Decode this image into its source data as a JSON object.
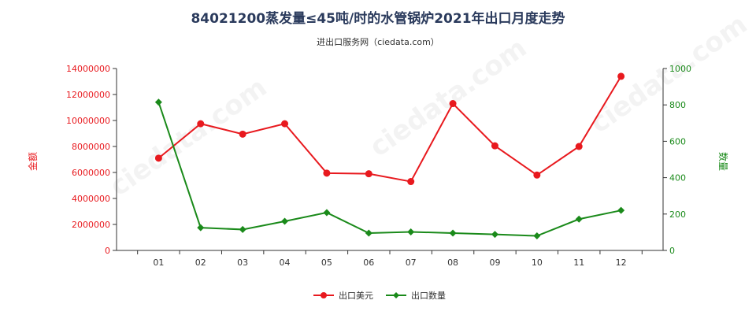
{
  "chart_data": {
    "type": "line",
    "title": "84021200蒸发量≤45吨/时的水管锅炉2021年出口月度走势",
    "subtitle": "进出口服务网（ciedata.com）",
    "categories": [
      "01",
      "02",
      "03",
      "04",
      "05",
      "06",
      "07",
      "08",
      "09",
      "10",
      "11",
      "12"
    ],
    "series": [
      {
        "name": "出口美元",
        "axis": "left",
        "color": "#e8191e",
        "values": [
          7100000,
          9750000,
          8950000,
          9750000,
          5950000,
          5900000,
          5300000,
          11300000,
          8050000,
          5800000,
          8000000,
          13400000
        ]
      },
      {
        "name": "出口数量",
        "axis": "right",
        "color": "#1a8a1a",
        "values": [
          815,
          125,
          115,
          160,
          208,
          95,
          102,
          95,
          88,
          80,
          172,
          220
        ]
      }
    ],
    "ylabel_left": "金额",
    "ylabel_right": "数量",
    "ylim_left": [
      0,
      14000000
    ],
    "yticks_left": [
      "0",
      "2000000",
      "4000000",
      "6000000",
      "8000000",
      "10000000",
      "12000000",
      "14000000"
    ],
    "ylim_right": [
      0,
      1000
    ],
    "yticks_right": [
      "0",
      "200",
      "400",
      "600",
      "800",
      "1000"
    ],
    "grid": false,
    "legend_position": "bottom",
    "left_axis_color": "#e8191e",
    "right_axis_color": "#1a8a1a"
  }
}
